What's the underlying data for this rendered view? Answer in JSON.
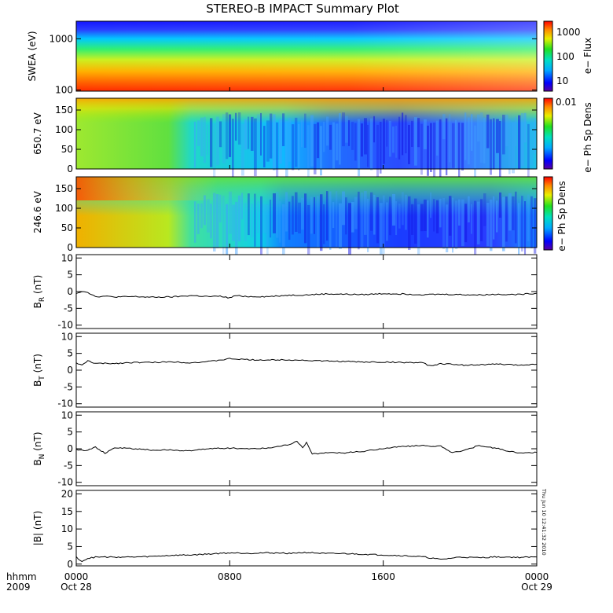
{
  "title": "STEREO-B IMPACT Summary Plot",
  "timestamp": "Thu Jun 10 12:41:32 2010",
  "x_axis": {
    "row_label_time": "hhmm",
    "row_label_year": "2009",
    "ticks": [
      {
        "hours": 0,
        "time": "0000",
        "date": "Oct 28"
      },
      {
        "hours": 8,
        "time": "0800",
        "date": ""
      },
      {
        "hours": 16,
        "time": "1600",
        "date": ""
      },
      {
        "hours": 24,
        "time": "0000",
        "date": "Oct 29"
      }
    ]
  },
  "colorbar_1": {
    "label": "e− Flux",
    "ticks": [
      "1000",
      "100",
      "10"
    ]
  },
  "colorbar_2": {
    "label": "e− Ph Sp Dens",
    "ticks": [
      "0.01"
    ]
  },
  "colorbar_3": {
    "label": "e− Ph Sp Dens"
  },
  "chart_data": [
    {
      "type": "heatmap",
      "ylabel": "SWEA (eV)",
      "yscale": "log",
      "ylim": [
        95,
        2200
      ],
      "yticks": [
        "1000",
        "100"
      ],
      "xrange_hours": [
        0,
        24
      ]
    },
    {
      "type": "heatmap",
      "ylabel": "650.7 eV",
      "ylim": [
        0,
        180
      ],
      "yticks": [
        "150",
        "100",
        "50",
        "0"
      ],
      "xrange_hours": [
        0,
        24
      ]
    },
    {
      "type": "heatmap",
      "ylabel": "246.6 eV",
      "ylim": [
        0,
        180
      ],
      "yticks": [
        "150",
        "100",
        "50",
        "0"
      ],
      "xrange_hours": [
        0,
        24
      ]
    },
    {
      "type": "line",
      "ylabel": "B",
      "ylabel_sub": "R",
      "ylabel_unit": "(nT)",
      "ylim": [
        -11,
        11
      ],
      "yticks": [
        "10",
        "5",
        "0",
        "-5",
        "-10"
      ],
      "x": [
        0,
        0.3,
        0.6,
        1,
        1.5,
        2,
        3,
        4,
        5,
        6,
        7,
        7.5,
        8,
        8.3,
        9,
        10,
        11,
        12,
        13,
        14,
        15,
        16,
        17,
        18,
        19,
        20,
        21,
        22,
        23,
        24
      ],
      "y": [
        -0.5,
        0.1,
        -0.2,
        -1.5,
        -1.4,
        -1.6,
        -1.5,
        -1.7,
        -1.6,
        -1.2,
        -1.5,
        -1.4,
        -1.9,
        -1.2,
        -1.5,
        -1.5,
        -1.1,
        -1,
        -0.7,
        -0.8,
        -0.9,
        -0.6,
        -0.7,
        -0.9,
        -0.8,
        -0.9,
        -1,
        -0.8,
        -0.9,
        -0.5
      ]
    },
    {
      "type": "line",
      "ylabel": "B",
      "ylabel_sub": "T",
      "ylabel_unit": "(nT)",
      "ylim": [
        -11,
        11
      ],
      "yticks": [
        "10",
        "5",
        "0",
        "-5",
        "-10"
      ],
      "x": [
        0,
        0.3,
        0.6,
        1,
        2,
        3,
        4,
        5,
        6,
        7,
        8,
        9,
        10,
        11,
        12,
        13,
        14,
        15,
        16,
        17,
        18,
        18.5,
        19,
        20,
        21,
        22,
        23,
        24
      ],
      "y": [
        2.2,
        1.4,
        2.8,
        2,
        2,
        2.3,
        2.3,
        2.5,
        2.2,
        2.6,
        3.4,
        3.1,
        3,
        3.1,
        2.9,
        2.7,
        2.6,
        2.4,
        2.4,
        2.3,
        2.2,
        1.2,
        2,
        1.5,
        1.6,
        1.8,
        1.5,
        1.8
      ]
    },
    {
      "type": "line",
      "ylabel": "B",
      "ylabel_sub": "N",
      "ylabel_unit": "(nT)",
      "ylim": [
        -11,
        11
      ],
      "yticks": [
        "10",
        "5",
        "0",
        "-5",
        "-10"
      ],
      "x": [
        0,
        0.5,
        1,
        1.5,
        2,
        3,
        4,
        5,
        6,
        7,
        8,
        9,
        10,
        11,
        11.5,
        11.8,
        12,
        12.3,
        13,
        14,
        15,
        16,
        17,
        18,
        18.5,
        19,
        19.5,
        20,
        21,
        22,
        23,
        24
      ],
      "y": [
        -0.2,
        -0.5,
        0.5,
        -1.4,
        0.3,
        0,
        -0.4,
        -0.4,
        -0.6,
        0.1,
        0.2,
        0,
        0.2,
        1.2,
        2.1,
        0.3,
        2,
        -1.6,
        -1.2,
        -1.2,
        -0.8,
        0.1,
        0.7,
        0.9,
        0.8,
        0.8,
        -1,
        -0.9,
        1,
        0,
        -1.3,
        -1.1
      ]
    },
    {
      "type": "line",
      "ylabel": "|B|",
      "ylabel_unit": "(nT)",
      "ylim": [
        -0.5,
        21
      ],
      "yticks": [
        "20",
        "15",
        "10",
        "5",
        "0"
      ],
      "x": [
        0,
        0.3,
        0.6,
        1,
        2,
        3,
        4,
        5,
        6,
        7,
        8,
        9,
        10,
        11,
        12,
        13,
        14,
        15,
        16,
        17,
        18,
        19,
        20,
        21,
        22,
        23,
        24
      ],
      "y": [
        2,
        0.8,
        1.6,
        2,
        2,
        2,
        2.2,
        2.5,
        2.6,
        2.9,
        3.2,
        3.1,
        3.2,
        3.1,
        3.3,
        3,
        3,
        2.8,
        2.6,
        2.4,
        2.1,
        1.3,
        2,
        1.8,
        2.1,
        1.9,
        2
      ]
    }
  ]
}
